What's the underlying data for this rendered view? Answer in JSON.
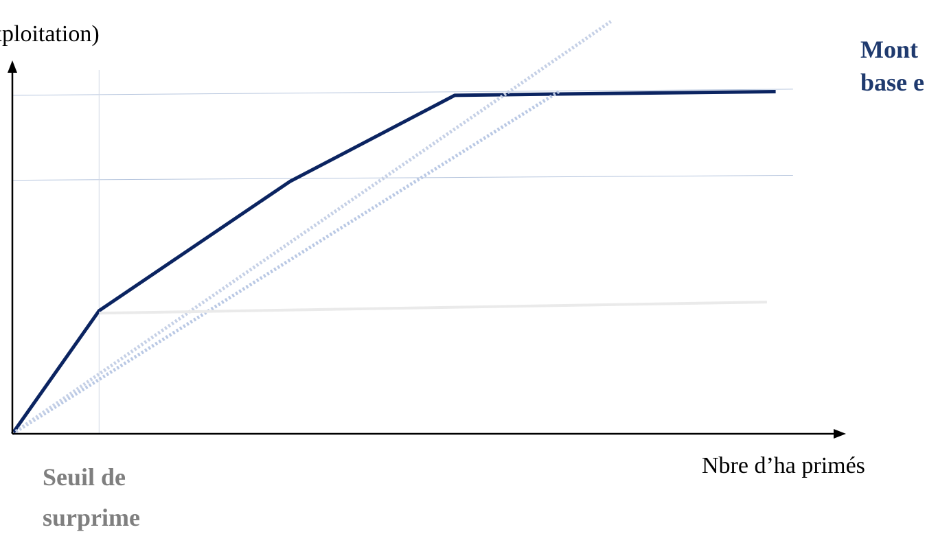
{
  "chart_data": {
    "type": "line",
    "ylabel": "xploitation)",
    "xlabel": "Nbre d’ha primés",
    "annotations": {
      "threshold_label": [
        "Seuil de",
        "surprime"
      ],
      "right_label": [
        "Mont",
        "base e"
      ]
    },
    "series": [
      {
        "role": "main",
        "color": "#0b2461",
        "style": "solid",
        "x": [
          0,
          1,
          3.2,
          5.1,
          6.2,
          8.8
        ],
        "y": [
          0,
          1,
          2.05,
          2.75,
          2.76,
          2.78
        ]
      },
      {
        "role": "dotted-1",
        "color": "#b9c8e4",
        "style": "dotted",
        "x": [
          0,
          6.3
        ],
        "y": [
          0,
          2.78
        ]
      },
      {
        "role": "dotted-2",
        "color": "#c5d0e6",
        "style": "dotted",
        "x": [
          0,
          6.9
        ],
        "y": [
          0,
          3.35
        ]
      },
      {
        "role": "lower-ref",
        "color": "#eaeaea",
        "style": "solid",
        "x": [
          1,
          8.7
        ],
        "y": [
          0.98,
          1.07
        ]
      }
    ],
    "ref_lines": [
      {
        "color": "#b7c6de",
        "x": [
          0,
          9
        ],
        "y": [
          2.75,
          2.8
        ]
      },
      {
        "color": "#b7c6de",
        "x": [
          0,
          9
        ],
        "y": [
          2.06,
          2.1
        ]
      }
    ],
    "threshold_x": 1,
    "xlim": [
      0,
      9.5
    ],
    "ylim": [
      0,
      2.9
    ],
    "axis_color": "#000000",
    "grid": false
  }
}
